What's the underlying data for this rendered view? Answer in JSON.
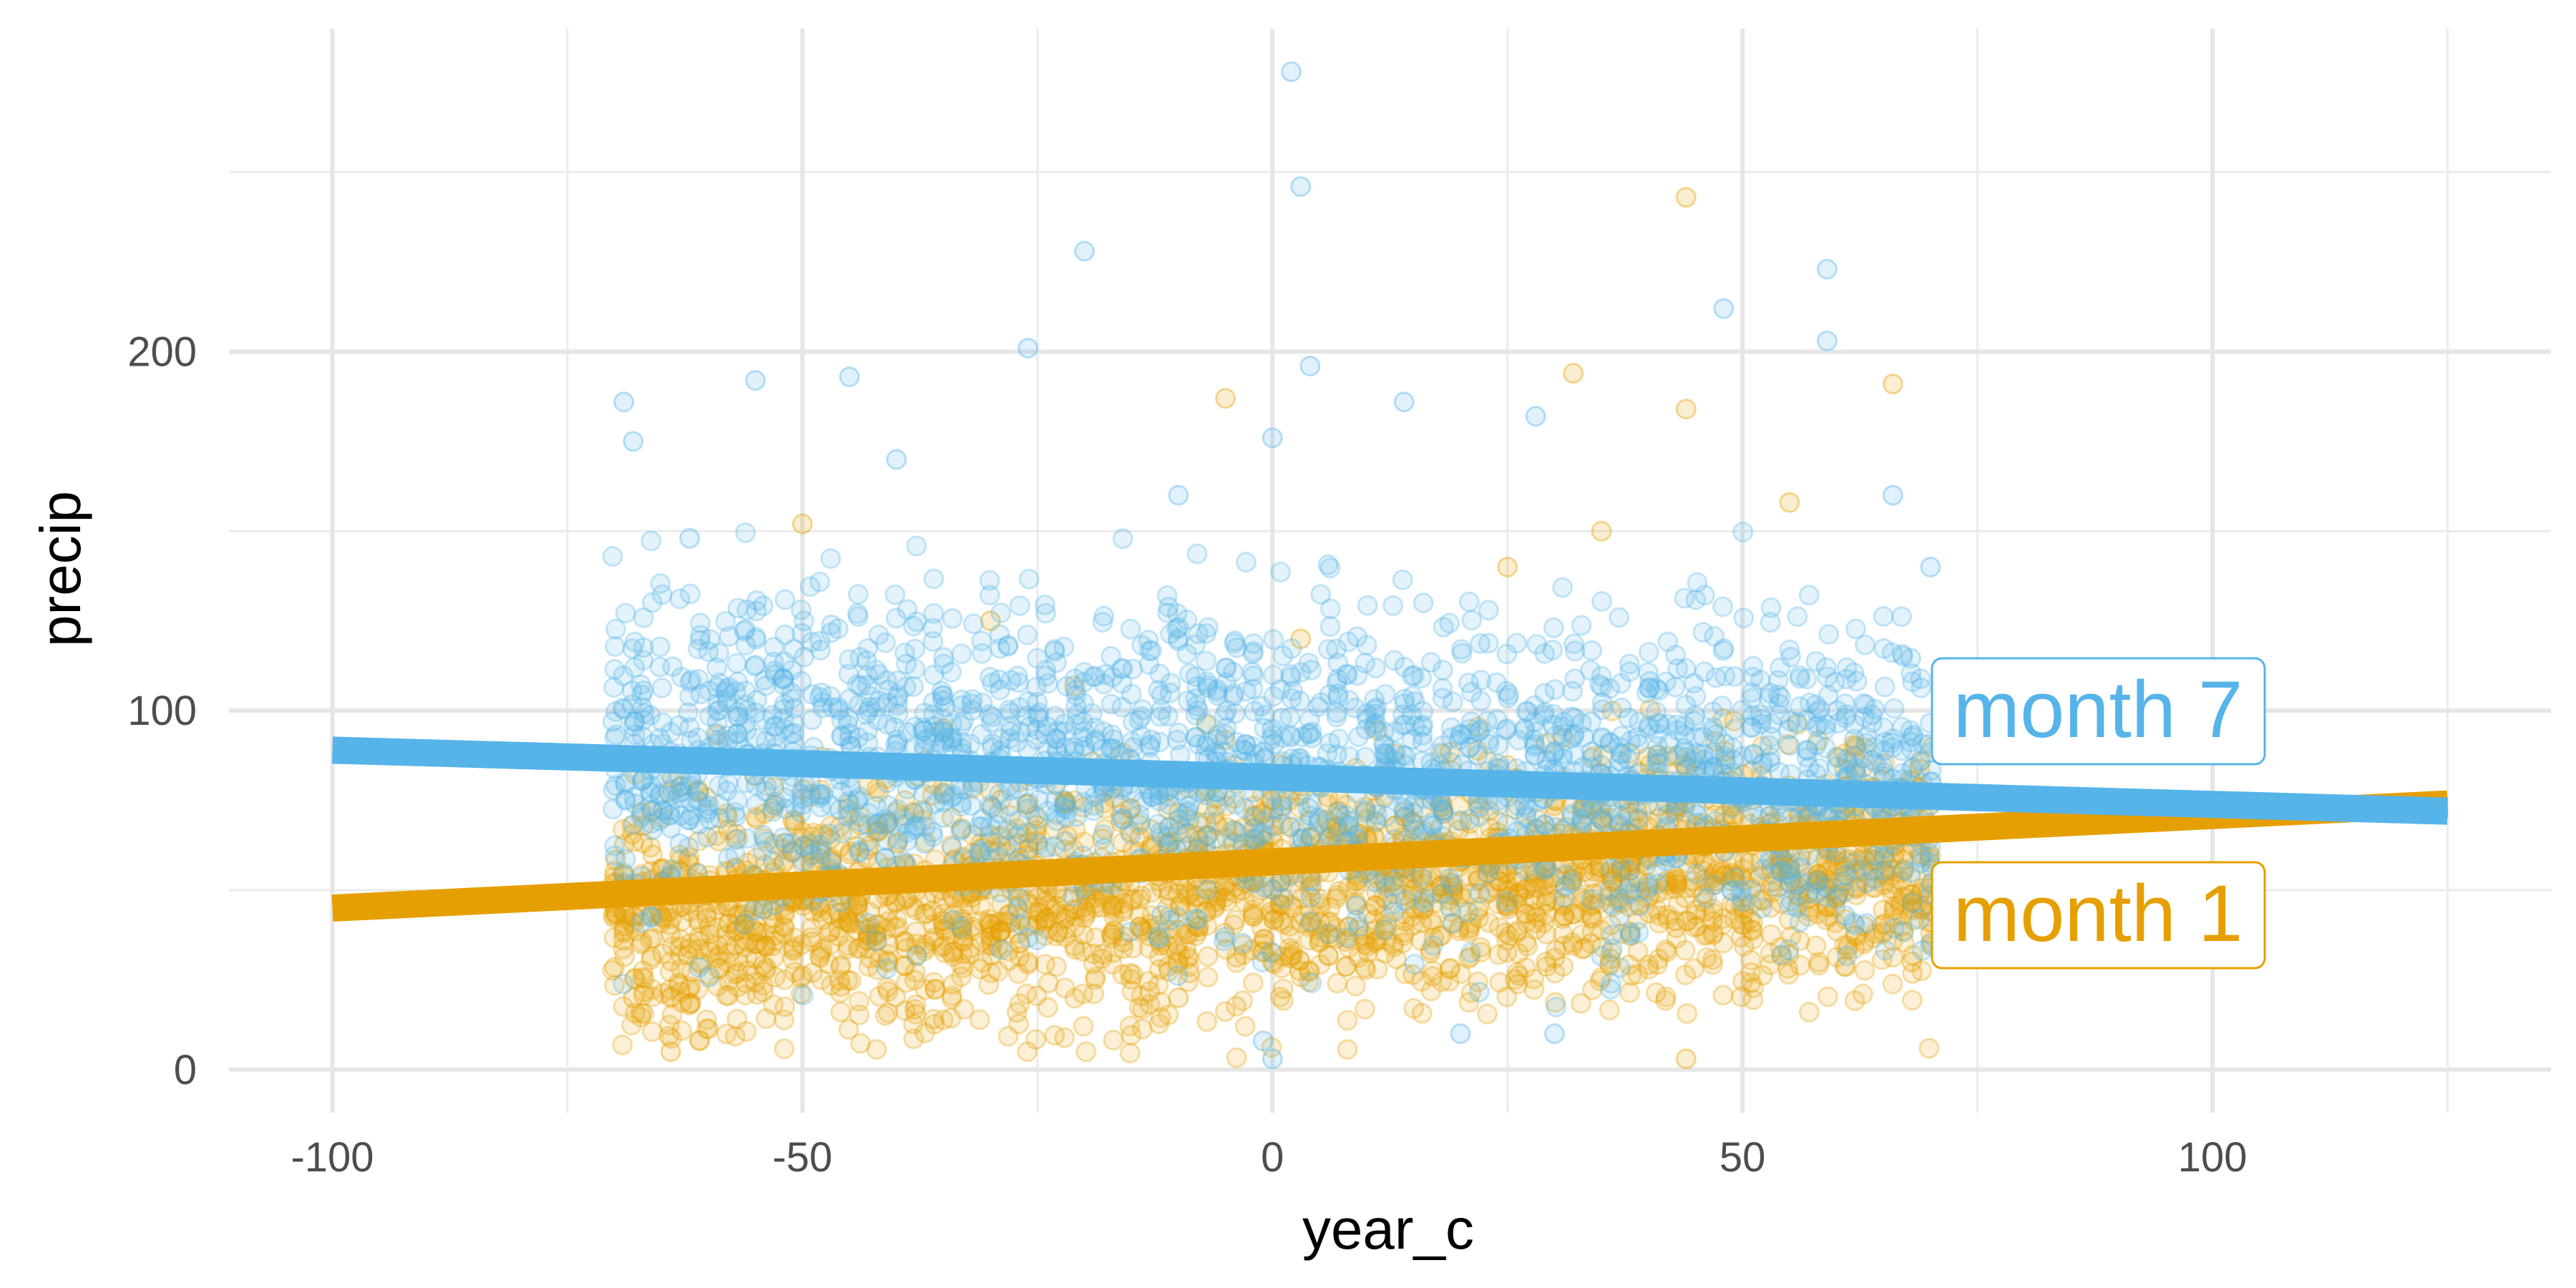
{
  "chart_data": {
    "type": "scatter",
    "xlabel": "year_c",
    "ylabel": "precip",
    "xlim": [
      -111,
      136
    ],
    "ylim": [
      -12,
      290
    ],
    "x_ticks": [
      -100,
      -50,
      0,
      50,
      100
    ],
    "x_tick_labels": [
      "-100",
      "-50",
      "0",
      "50",
      "100"
    ],
    "y_ticks": [
      0,
      100,
      200
    ],
    "y_tick_labels": [
      "0",
      "100",
      "200"
    ],
    "grid": true,
    "legend": "none",
    "series": [
      {
        "name": "month 1",
        "color": "#E69F00",
        "trend_line": {
          "x": [
            -100,
            125
          ],
          "y": [
            45,
            74
          ]
        },
        "point_x_range": [
          -70,
          70
        ],
        "points_sample": [
          [
            -68,
            20
          ],
          [
            -64,
            5
          ],
          [
            -62,
            18
          ],
          [
            -55,
            35
          ],
          [
            -50,
            152
          ],
          [
            -45,
            60
          ],
          [
            -35,
            95
          ],
          [
            -30,
            125
          ],
          [
            -25,
            50
          ],
          [
            -10,
            20
          ],
          [
            -5,
            187
          ],
          [
            0,
            30
          ],
          [
            3,
            120
          ],
          [
            15,
            50
          ],
          [
            25,
            140
          ],
          [
            32,
            194
          ],
          [
            35,
            150
          ],
          [
            44,
            243
          ],
          [
            44,
            184
          ],
          [
            44,
            3
          ],
          [
            55,
            158
          ],
          [
            60,
            60
          ],
          [
            66,
            191
          ],
          [
            68,
            30
          ]
        ],
        "label": "month 1"
      },
      {
        "name": "month 7",
        "color": "#56B4E9",
        "trend_line": {
          "x": [
            -100,
            125
          ],
          "y": [
            89,
            72
          ]
        },
        "point_x_range": [
          -70,
          70
        ],
        "points_sample": [
          [
            -69,
            186
          ],
          [
            -68,
            175
          ],
          [
            -62,
            148
          ],
          [
            -55,
            192
          ],
          [
            -45,
            193
          ],
          [
            -40,
            170
          ],
          [
            -26,
            201
          ],
          [
            -20,
            228
          ],
          [
            -10,
            160
          ],
          [
            0,
            176
          ],
          [
            2,
            278
          ],
          [
            3,
            246
          ],
          [
            4,
            196
          ],
          [
            14,
            186
          ],
          [
            28,
            182
          ],
          [
            48,
            212
          ],
          [
            59,
            223
          ],
          [
            59,
            203
          ],
          [
            -1,
            8
          ],
          [
            0,
            3
          ],
          [
            20,
            10
          ],
          [
            30,
            10
          ],
          [
            66,
            160
          ],
          [
            70,
            140
          ]
        ],
        "label": "month 7"
      }
    ]
  }
}
